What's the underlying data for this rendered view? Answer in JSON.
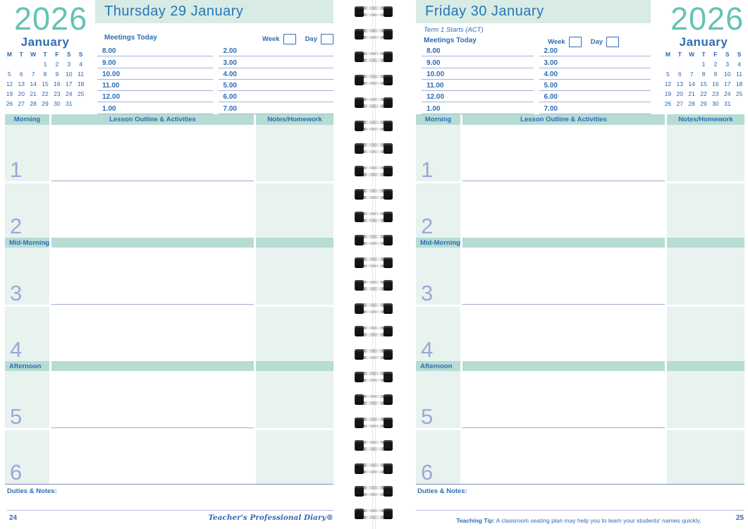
{
  "year": "2026",
  "calendar": {
    "title": "January",
    "weekdays": [
      "M",
      "T",
      "W",
      "T",
      "F",
      "S",
      "S"
    ],
    "weeks": [
      [
        "",
        "",
        "",
        "1",
        "2",
        "3",
        "4"
      ],
      [
        "5",
        "6",
        "7",
        "8",
        "9",
        "10",
        "11"
      ],
      [
        "12",
        "13",
        "14",
        "15",
        "16",
        "17",
        "18"
      ],
      [
        "19",
        "20",
        "21",
        "22",
        "23",
        "24",
        "25"
      ],
      [
        "26",
        "27",
        "28",
        "29",
        "30",
        "31",
        ""
      ]
    ]
  },
  "pages": {
    "left": {
      "title": "Thursday 29 January",
      "page_number": "24",
      "footer_brand": "Teacher's Professional Diary®"
    },
    "right": {
      "title": "Friday 30 January",
      "subtitle": "Term 1 Starts (ACT)",
      "page_number": "25",
      "teaching_tip_label": "Teaching Tip:",
      "teaching_tip_text": "A classroom seating plan may help you to learn your students' names quickly."
    }
  },
  "meetings": {
    "label": "Meetings Today",
    "week_label": "Week",
    "day_label": "Day",
    "columns": [
      [
        "8.00",
        "9.00",
        "10.00",
        "11.00",
        "12.00",
        "1.00"
      ],
      [
        "2.00",
        "3.00",
        "4.00",
        "5.00",
        "6.00",
        "7.00"
      ]
    ]
  },
  "schedule": {
    "headers": [
      "Morning",
      "Lesson Outline & Activities",
      "Notes/Homework"
    ],
    "periods": [
      "1",
      "2",
      "3",
      "4",
      "5",
      "6"
    ],
    "breaks": {
      "mid_morning": "Mid-Morning",
      "afternoon": "Afternoon"
    },
    "duties_label": "Duties & Notes:"
  },
  "binding": {
    "coil_count": 23
  },
  "colors": {
    "year_teal": "#62c4b2",
    "title_blue": "#2277b8",
    "text_blue": "#2f6cb4",
    "band_teal": "#b6dcd4",
    "cell_mint": "#e8f3f0",
    "titlebar_mint": "#d8ebe4",
    "period_number_blue": "#9ba9d6",
    "rule_blue": "#a3b1d6"
  }
}
